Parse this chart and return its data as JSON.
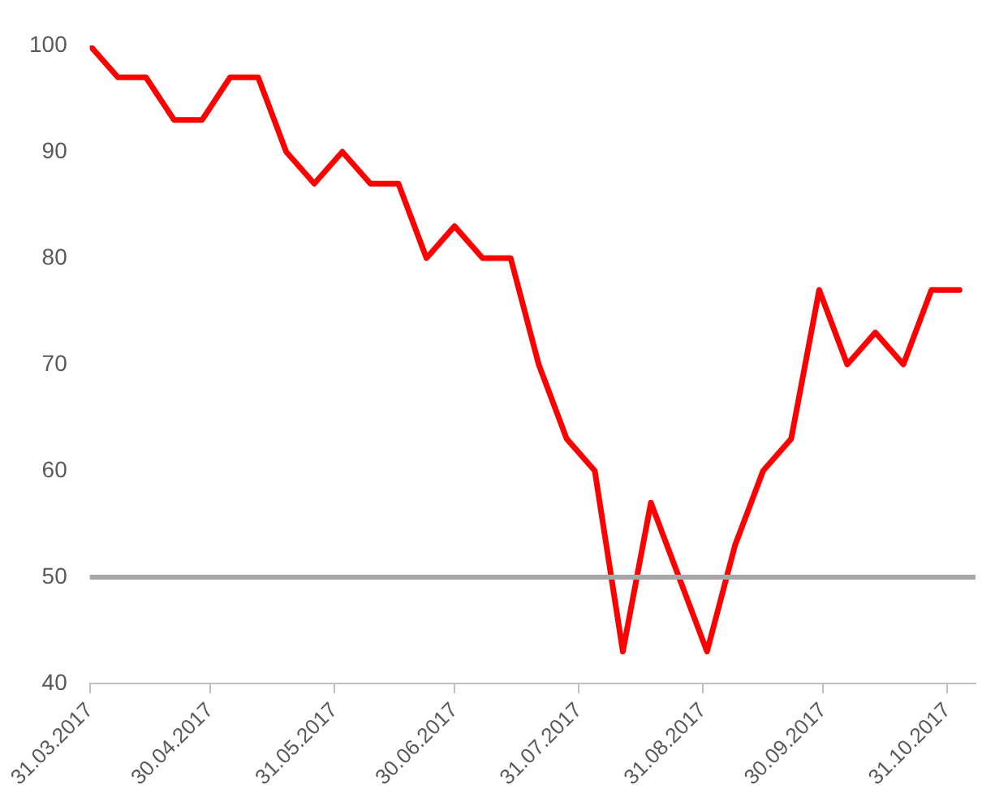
{
  "chart_data": {
    "type": "line",
    "x": [
      "2017-03-31",
      "2017-04-07",
      "2017-04-14",
      "2017-04-21",
      "2017-04-28",
      "2017-05-05",
      "2017-05-12",
      "2017-05-19",
      "2017-05-26",
      "2017-06-02",
      "2017-06-09",
      "2017-06-16",
      "2017-06-23",
      "2017-06-30",
      "2017-07-07",
      "2017-07-14",
      "2017-07-21",
      "2017-07-28",
      "2017-08-04",
      "2017-08-11",
      "2017-08-18",
      "2017-08-25",
      "2017-09-01",
      "2017-09-08",
      "2017-09-15",
      "2017-09-22",
      "2017-09-29",
      "2017-10-06",
      "2017-10-13",
      "2017-10-20",
      "2017-10-27",
      "2017-11-03"
    ],
    "series": [
      {
        "color": "#ff0000",
        "values": [
          100,
          97,
          97,
          93,
          93,
          97,
          97,
          90,
          87,
          90,
          87,
          87,
          80,
          83,
          80,
          80,
          70,
          63,
          60,
          43,
          57,
          50,
          43,
          53,
          60,
          63,
          77,
          70,
          73,
          70,
          77,
          77
        ]
      }
    ],
    "xlim": [
      "2017-03-31",
      "2017-11-07"
    ],
    "xticks": [
      {
        "value": "2017-03-31",
        "label": "31.03.2017"
      },
      {
        "value": "2017-04-30",
        "label": "30.04.2017"
      },
      {
        "value": "2017-05-31",
        "label": "31.05.2017"
      },
      {
        "value": "2017-06-30",
        "label": "30.06.2017"
      },
      {
        "value": "2017-07-31",
        "label": "31.07.2017"
      },
      {
        "value": "2017-08-31",
        "label": "31.08.2017"
      },
      {
        "value": "2017-09-30",
        "label": "30.09.2017"
      },
      {
        "value": "2017-10-31",
        "label": "31.10.2017"
      }
    ],
    "ylim": [
      40,
      100
    ],
    "yticks": [
      40,
      50,
      60,
      70,
      80,
      90,
      100
    ],
    "ref_lines": [
      {
        "axis": "y",
        "value": 50,
        "color": "#a6a6a6"
      }
    ],
    "grid": false,
    "legend": false,
    "marker": "none",
    "line_style": "solid"
  }
}
